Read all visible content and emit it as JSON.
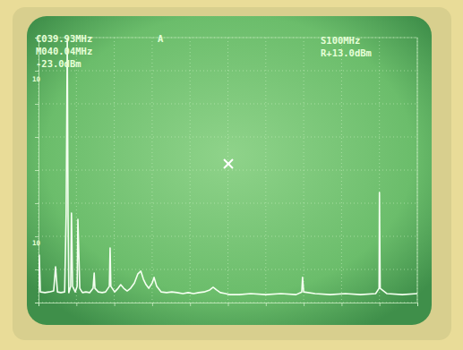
{
  "chart_data": {
    "type": "line",
    "annotations": [
      "C039.93MHz",
      "A",
      "M040.04MHz",
      "-23.0dBm",
      "S100MHz",
      "R+13.0dBm",
      "10",
      "10"
    ],
    "x": [
      0,
      0.02,
      0.05,
      0.17,
      0.28,
      0.4,
      0.45,
      0.5,
      0.59,
      0.69,
      0.73,
      0.76,
      0.78,
      0.8,
      0.85,
      0.87,
      0.9,
      0.97,
      1.02,
      1.04,
      1.09,
      1.16,
      1.25,
      1.35,
      1.44,
      1.47,
      1.49,
      1.58,
      1.68,
      1.77,
      1.87,
      1.89,
      1.91,
      2.01,
      2.1,
      2.17,
      2.25,
      2.34,
      2.43,
      2.53,
      2.62,
      2.7,
      2.77,
      2.84,
      2.91,
      3.0,
      3.05,
      3.12,
      3.24,
      3.38,
      3.52,
      3.66,
      3.81,
      3.95,
      4.09,
      4.23,
      4.37,
      4.52,
      4.61,
      4.7,
      4.8,
      4.94,
      5.04,
      5.3,
      5.6,
      6.0,
      6.4,
      6.8,
      6.95,
      6.97,
      7.0,
      7.3,
      7.7,
      8.1,
      8.5,
      8.9,
      8.99,
      9.0,
      9.02,
      9.2,
      9.6,
      10
    ],
    "values": [
      -63.8,
      -52.7,
      -63.8,
      -64.0,
      -63.8,
      -63.5,
      -56.2,
      -63.8,
      -64.0,
      -63.8,
      -40.0,
      12.5,
      -40.5,
      -64.0,
      -62.1,
      -40.0,
      -62.1,
      -63.8,
      -62.1,
      -41.9,
      -62.7,
      -64.0,
      -63.8,
      -64.0,
      -62.7,
      -58.1,
      -62.7,
      -63.8,
      -64.0,
      -63.8,
      -62.1,
      -50.5,
      -62.1,
      -63.8,
      -62.7,
      -61.6,
      -62.7,
      -63.5,
      -62.7,
      -61.1,
      -58.4,
      -57.5,
      -60.0,
      -61.6,
      -62.7,
      -61.1,
      -59.4,
      -62.1,
      -63.8,
      -64.0,
      -63.8,
      -64.0,
      -64.3,
      -64.0,
      -64.3,
      -64.0,
      -63.8,
      -63.2,
      -62.4,
      -63.2,
      -64.0,
      -64.3,
      -64.6,
      -64.6,
      -64.3,
      -64.6,
      -64.3,
      -64.6,
      -63.8,
      -59.4,
      -63.8,
      -64.3,
      -64.6,
      -64.3,
      -64.6,
      -64.3,
      -62.7,
      -33.8,
      -62.7,
      -64.3,
      -64.6,
      -64.3
    ],
    "color": "#f4fff0",
    "xlim": [
      0,
      10
    ],
    "xticks": [
      0,
      1,
      2,
      3,
      4,
      5,
      6,
      7,
      8,
      9,
      10
    ],
    "ylim": [
      -67,
      13
    ],
    "yticks": [
      -67,
      -57,
      -47,
      -37,
      -27,
      -17,
      -7,
      3,
      13
    ],
    "grid": true,
    "tick_labels": false
  }
}
